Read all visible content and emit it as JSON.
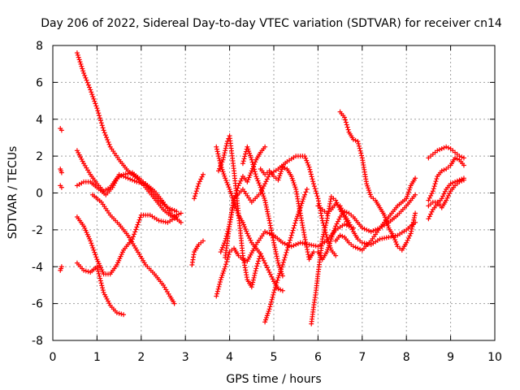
{
  "chart_data": {
    "type": "scatter",
    "title": "Day 206 of 2022, Sidereal Day-to-day VTEC variation (SDTVAR) for receiver cn14",
    "xlabel": "GPS time / hours",
    "ylabel": "SDTVAR / TECUs",
    "xlim": [
      0,
      10
    ],
    "ylim": [
      -8,
      8
    ],
    "xticks": [
      0,
      1,
      2,
      3,
      4,
      5,
      6,
      7,
      8,
      9,
      10
    ],
    "yticks": [
      -8,
      -6,
      -4,
      -2,
      0,
      2,
      4,
      6,
      8
    ],
    "grid": true,
    "marker": "+",
    "color": "#ff0000",
    "tracks": [
      [
        [
          0.17,
          3.5
        ],
        [
          0.2,
          3.4
        ]
      ],
      [
        [
          0.17,
          1.3
        ],
        [
          0.2,
          1.1
        ]
      ],
      [
        [
          0.17,
          0.4
        ],
        [
          0.2,
          0.3
        ]
      ],
      [
        [
          0.17,
          -4.2
        ],
        [
          0.2,
          -4.0
        ]
      ],
      [
        [
          0.55,
          7.6
        ],
        [
          0.7,
          6.5
        ],
        [
          0.85,
          5.6
        ],
        [
          1.0,
          4.6
        ],
        [
          1.15,
          3.4
        ],
        [
          1.3,
          2.5
        ],
        [
          1.5,
          1.8
        ],
        [
          1.7,
          1.2
        ],
        [
          1.9,
          0.8
        ],
        [
          2.1,
          0.3
        ],
        [
          2.3,
          -0.3
        ],
        [
          2.5,
          -0.9
        ],
        [
          2.7,
          -1.3
        ],
        [
          2.9,
          -1.1
        ]
      ],
      [
        [
          0.55,
          2.3
        ],
        [
          0.7,
          1.6
        ],
        [
          0.85,
          1.0
        ],
        [
          1.0,
          0.5
        ],
        [
          1.15,
          0.1
        ],
        [
          1.3,
          0.3
        ],
        [
          1.45,
          0.8
        ],
        [
          1.6,
          1.0
        ],
        [
          1.8,
          1.1
        ],
        [
          2.0,
          0.7
        ],
        [
          2.2,
          0.2
        ],
        [
          2.4,
          -0.4
        ],
        [
          2.6,
          -0.8
        ],
        [
          2.8,
          -1.0
        ]
      ],
      [
        [
          0.55,
          0.4
        ],
        [
          0.7,
          0.6
        ],
        [
          0.85,
          0.6
        ],
        [
          1.0,
          0.3
        ],
        [
          1.2,
          -0.1
        ],
        [
          1.35,
          0.3
        ],
        [
          1.5,
          1.0
        ],
        [
          1.7,
          0.8
        ],
        [
          1.9,
          0.6
        ],
        [
          2.1,
          0.5
        ],
        [
          2.3,
          0.1
        ],
        [
          2.5,
          -0.5
        ],
        [
          2.7,
          -1.2
        ],
        [
          2.9,
          -1.6
        ]
      ],
      [
        [
          0.55,
          -1.3
        ],
        [
          0.7,
          -1.8
        ],
        [
          0.85,
          -2.6
        ],
        [
          1.0,
          -3.6
        ],
        [
          1.15,
          -4.4
        ],
        [
          1.3,
          -4.4
        ],
        [
          1.45,
          -3.9
        ],
        [
          1.6,
          -3.1
        ],
        [
          1.8,
          -2.5
        ],
        [
          2.0,
          -1.2
        ],
        [
          2.2,
          -1.2
        ],
        [
          2.4,
          -1.5
        ],
        [
          2.6,
          -1.6
        ],
        [
          2.8,
          -1.3
        ]
      ],
      [
        [
          0.55,
          -3.8
        ],
        [
          0.7,
          -4.2
        ],
        [
          0.85,
          -4.3
        ],
        [
          1.0,
          -4.0
        ],
        [
          1.15,
          -5.4
        ],
        [
          1.3,
          -6.1
        ],
        [
          1.45,
          -6.5
        ],
        [
          1.6,
          -6.6
        ]
      ],
      [
        [
          0.9,
          -0.1
        ],
        [
          1.1,
          -0.5
        ],
        [
          1.3,
          -1.2
        ],
        [
          1.5,
          -1.7
        ],
        [
          1.7,
          -2.3
        ],
        [
          1.9,
          -3.1
        ],
        [
          2.1,
          -3.9
        ],
        [
          2.3,
          -4.4
        ],
        [
          2.5,
          -5.0
        ],
        [
          2.65,
          -5.6
        ],
        [
          2.75,
          -6.0
        ]
      ],
      [
        [
          3.15,
          -3.9
        ],
        [
          3.2,
          -3.2
        ],
        [
          3.3,
          -2.8
        ],
        [
          3.4,
          -2.6
        ]
      ],
      [
        [
          3.2,
          -0.3
        ],
        [
          3.3,
          0.5
        ],
        [
          3.4,
          1.0
        ]
      ],
      [
        [
          3.7,
          -5.6
        ],
        [
          3.8,
          -4.7
        ],
        [
          3.9,
          -4.0
        ],
        [
          4.0,
          -3.2
        ],
        [
          4.1,
          -3.0
        ],
        [
          4.2,
          -3.4
        ],
        [
          4.3,
          -3.6
        ],
        [
          4.4,
          -3.7
        ],
        [
          4.6,
          -2.8
        ],
        [
          4.8,
          -2.1
        ],
        [
          5.0,
          -2.3
        ],
        [
          5.2,
          -2.7
        ],
        [
          5.4,
          -2.9
        ],
        [
          5.6,
          -2.7
        ],
        [
          5.8,
          -2.8
        ],
        [
          6.0,
          -2.9
        ],
        [
          6.2,
          -2.6
        ],
        [
          6.4,
          -2.0
        ],
        [
          6.6,
          -1.7
        ],
        [
          6.8,
          -1.9
        ]
      ],
      [
        [
          3.7,
          2.5
        ],
        [
          3.8,
          1.5
        ],
        [
          3.9,
          0.8
        ],
        [
          4.0,
          0.2
        ],
        [
          4.1,
          -0.5
        ],
        [
          4.2,
          -1.2
        ],
        [
          4.3,
          -1.6
        ],
        [
          4.4,
          -2.2
        ],
        [
          4.5,
          -2.7
        ],
        [
          4.6,
          -3.0
        ],
        [
          4.7,
          -3.3
        ],
        [
          4.8,
          -3.8
        ],
        [
          4.9,
          -4.3
        ],
        [
          5.0,
          -4.8
        ],
        [
          5.1,
          -5.2
        ],
        [
          5.2,
          -5.3
        ]
      ],
      [
        [
          3.75,
          1.2
        ],
        [
          3.85,
          1.8
        ],
        [
          3.95,
          2.8
        ],
        [
          4.0,
          3.1
        ],
        [
          4.1,
          1.2
        ],
        [
          4.2,
          -1.1
        ],
        [
          4.3,
          -3.4
        ],
        [
          4.4,
          -4.7
        ],
        [
          4.5,
          -5.1
        ],
        [
          4.6,
          -4.1
        ],
        [
          4.7,
          -3.3
        ]
      ],
      [
        [
          3.8,
          -3.2
        ],
        [
          3.9,
          -2.6
        ],
        [
          4.0,
          -1.7
        ],
        [
          4.1,
          -0.4
        ],
        [
          4.2,
          0.4
        ],
        [
          4.3,
          0.9
        ],
        [
          4.4,
          0.6
        ],
        [
          4.5,
          1.2
        ],
        [
          4.6,
          1.8
        ],
        [
          4.7,
          2.2
        ],
        [
          4.8,
          2.5
        ]
      ],
      [
        [
          3.9,
          -3.5
        ],
        [
          4.0,
          -1.7
        ],
        [
          4.1,
          -0.3
        ],
        [
          4.3,
          0.2
        ],
        [
          4.5,
          -0.5
        ],
        [
          4.7,
          0.0
        ],
        [
          4.9,
          1.0
        ],
        [
          5.1,
          1.3
        ],
        [
          5.3,
          1.7
        ],
        [
          5.5,
          2.0
        ],
        [
          5.7,
          2.0
        ],
        [
          5.8,
          1.4
        ],
        [
          5.9,
          0.5
        ],
        [
          6.0,
          -0.3
        ],
        [
          6.1,
          -1.5
        ],
        [
          6.2,
          -2.4
        ],
        [
          6.3,
          -3.1
        ],
        [
          6.4,
          -3.4
        ]
      ],
      [
        [
          4.3,
          1.6
        ],
        [
          4.4,
          2.5
        ],
        [
          4.5,
          1.8
        ],
        [
          4.6,
          0.9
        ],
        [
          4.7,
          0.3
        ],
        [
          4.8,
          -0.4
        ],
        [
          4.9,
          -1.5
        ],
        [
          5.0,
          -2.7
        ],
        [
          5.1,
          -3.8
        ],
        [
          5.2,
          -4.5
        ]
      ],
      [
        [
          4.8,
          -7.0
        ],
        [
          4.9,
          -6.3
        ],
        [
          5.0,
          -5.4
        ],
        [
          5.1,
          -4.6
        ],
        [
          5.2,
          -3.9
        ],
        [
          5.3,
          -3.1
        ],
        [
          5.4,
          -2.3
        ],
        [
          5.5,
          -1.5
        ],
        [
          5.6,
          -0.8
        ],
        [
          5.7,
          -0.1
        ],
        [
          5.75,
          0.2
        ]
      ],
      [
        [
          4.7,
          1.3
        ],
        [
          4.8,
          1.0
        ],
        [
          4.9,
          1.2
        ],
        [
          5.0,
          0.9
        ],
        [
          5.1,
          0.7
        ],
        [
          5.2,
          1.4
        ],
        [
          5.3,
          1.3
        ],
        [
          5.4,
          0.9
        ],
        [
          5.5,
          0.2
        ],
        [
          5.6,
          -1.1
        ],
        [
          5.7,
          -2.4
        ],
        [
          5.8,
          -3.6
        ],
        [
          5.9,
          -3.2
        ]
      ],
      [
        [
          5.85,
          -7.1
        ],
        [
          5.9,
          -6.2
        ],
        [
          5.95,
          -5.4
        ],
        [
          6.0,
          -4.4
        ],
        [
          6.05,
          -3.5
        ],
        [
          6.1,
          -2.5
        ],
        [
          6.2,
          -1.5
        ],
        [
          6.3,
          -0.2
        ],
        [
          6.4,
          -0.4
        ],
        [
          6.5,
          -0.9
        ],
        [
          6.6,
          -1.3
        ],
        [
          6.7,
          -1.8
        ]
      ],
      [
        [
          6.0,
          -3.2
        ],
        [
          6.1,
          -3.6
        ],
        [
          6.2,
          -3.2
        ],
        [
          6.3,
          -2.5
        ],
        [
          6.4,
          -1.8
        ],
        [
          6.5,
          -1.3
        ],
        [
          6.6,
          -1.0
        ],
        [
          6.7,
          -1.1
        ],
        [
          6.8,
          -1.3
        ],
        [
          7.0,
          -1.9
        ],
        [
          7.2,
          -2.1
        ],
        [
          7.4,
          -1.9
        ],
        [
          7.6,
          -1.6
        ],
        [
          7.8,
          -1.2
        ],
        [
          8.0,
          -0.7
        ],
        [
          8.1,
          -0.4
        ],
        [
          8.2,
          -0.1
        ]
      ],
      [
        [
          6.4,
          -2.6
        ],
        [
          6.5,
          -2.3
        ],
        [
          6.6,
          -2.4
        ],
        [
          6.7,
          -2.7
        ],
        [
          6.8,
          -2.9
        ],
        [
          7.0,
          -3.1
        ],
        [
          7.2,
          -2.6
        ],
        [
          7.4,
          -1.9
        ],
        [
          7.6,
          -1.3
        ],
        [
          7.8,
          -0.7
        ],
        [
          8.0,
          -0.3
        ],
        [
          8.1,
          0.4
        ],
        [
          8.2,
          0.8
        ]
      ],
      [
        [
          6.5,
          4.4
        ],
        [
          6.6,
          4.1
        ],
        [
          6.7,
          3.3
        ],
        [
          6.8,
          2.9
        ],
        [
          6.9,
          2.8
        ],
        [
          7.0,
          1.9
        ],
        [
          7.1,
          0.5
        ],
        [
          7.2,
          -0.2
        ],
        [
          7.3,
          -0.4
        ],
        [
          7.4,
          -0.8
        ],
        [
          7.5,
          -1.2
        ],
        [
          7.6,
          -1.9
        ],
        [
          7.7,
          -2.3
        ],
        [
          7.8,
          -2.9
        ],
        [
          7.9,
          -3.1
        ],
        [
          8.0,
          -2.7
        ],
        [
          8.1,
          -2.2
        ],
        [
          8.2,
          -1.1
        ]
      ],
      [
        [
          6.0,
          -0.7
        ],
        [
          6.1,
          -0.9
        ],
        [
          6.2,
          -1.1
        ],
        [
          6.3,
          -0.9
        ],
        [
          6.4,
          -0.6
        ],
        [
          6.5,
          -0.7
        ],
        [
          6.6,
          -1.2
        ],
        [
          6.7,
          -1.6
        ],
        [
          6.8,
          -2.1
        ],
        [
          6.9,
          -2.5
        ],
        [
          7.0,
          -2.7
        ],
        [
          7.2,
          -2.8
        ],
        [
          7.4,
          -2.5
        ],
        [
          7.6,
          -2.4
        ],
        [
          7.8,
          -2.3
        ],
        [
          8.0,
          -2.0
        ],
        [
          8.2,
          -1.6
        ]
      ],
      [
        [
          8.5,
          1.9
        ],
        [
          8.6,
          2.1
        ],
        [
          8.7,
          2.3
        ],
        [
          8.8,
          2.4
        ],
        [
          8.9,
          2.5
        ],
        [
          9.0,
          2.4
        ],
        [
          9.1,
          2.2
        ],
        [
          9.2,
          2.0
        ],
        [
          9.3,
          1.9
        ]
      ],
      [
        [
          8.5,
          -0.4
        ],
        [
          8.6,
          0.1
        ],
        [
          8.7,
          0.9
        ],
        [
          8.8,
          1.2
        ],
        [
          8.9,
          1.3
        ],
        [
          9.0,
          1.5
        ],
        [
          9.1,
          1.9
        ],
        [
          9.2,
          1.8
        ],
        [
          9.3,
          1.5
        ]
      ],
      [
        [
          8.5,
          -1.4
        ],
        [
          8.6,
          -0.9
        ],
        [
          8.7,
          -0.6
        ],
        [
          8.8,
          -0.3
        ],
        [
          8.9,
          0.2
        ],
        [
          9.0,
          0.5
        ],
        [
          9.1,
          0.6
        ],
        [
          9.2,
          0.7
        ],
        [
          9.3,
          0.8
        ]
      ],
      [
        [
          8.5,
          -0.7
        ],
        [
          8.6,
          -0.5
        ],
        [
          8.7,
          -0.5
        ],
        [
          8.8,
          -0.8
        ],
        [
          8.9,
          -0.4
        ],
        [
          9.0,
          0.1
        ],
        [
          9.1,
          0.4
        ],
        [
          9.2,
          0.6
        ],
        [
          9.3,
          0.7
        ]
      ]
    ]
  }
}
